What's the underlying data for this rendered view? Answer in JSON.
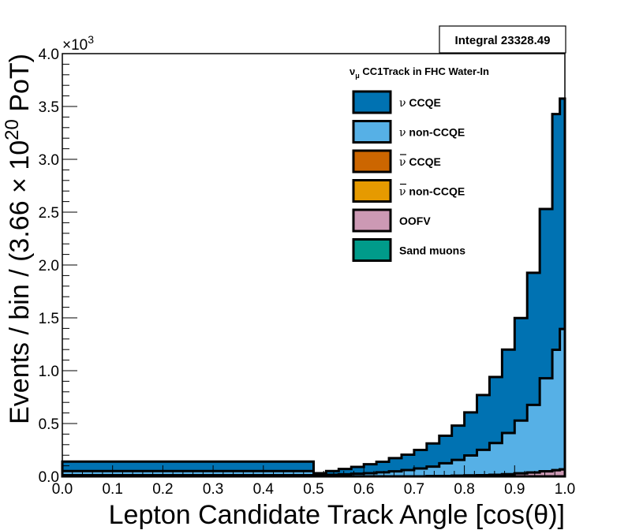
{
  "chart_data": {
    "type": "area",
    "stacked": true,
    "xlabel": "Lepton Candidate Track Angle [cos(θ)]",
    "ylabel_parts": {
      "main": "Events / bin / (3.66 × 10",
      "sup": "20",
      "tail": " PoT)"
    },
    "xlim": [
      0.0,
      1.0
    ],
    "ylim": [
      0.0,
      4.0
    ],
    "y_scale_label": {
      "base": "×10",
      "exp": "3"
    },
    "x_ticks": [
      "0.0",
      "0.1",
      "0.2",
      "0.3",
      "0.4",
      "0.5",
      "0.6",
      "0.7",
      "0.8",
      "0.9",
      "1.0"
    ],
    "y_ticks": [
      "0.0",
      "0.5",
      "1.0",
      "1.5",
      "2.0",
      "2.5",
      "3.0",
      "3.5",
      "4.0"
    ],
    "bin_edges": [
      0.0,
      0.5,
      0.525,
      0.55,
      0.575,
      0.6,
      0.625,
      0.65,
      0.675,
      0.7,
      0.725,
      0.75,
      0.775,
      0.8,
      0.825,
      0.85,
      0.875,
      0.9,
      0.925,
      0.95,
      0.975,
      0.99,
      1.0
    ],
    "series": [
      {
        "name": "Sand muons",
        "color": "#009b8a",
        "values": [
          0,
          0,
          0,
          0,
          0,
          0,
          0,
          0,
          0,
          0,
          0,
          0,
          0,
          0,
          0,
          0,
          0,
          0,
          0,
          0,
          0,
          0
        ]
      },
      {
        "name": "OOFV",
        "color": "#cc99b4",
        "values": [
          0.01,
          0.0,
          0.0,
          0.0,
          0.0,
          0.0,
          0.0,
          0.0,
          0.0,
          0.0,
          0.002,
          0.004,
          0.006,
          0.008,
          0.011,
          0.015,
          0.02,
          0.028,
          0.036,
          0.048,
          0.058,
          0.065
        ]
      },
      {
        "name": "ν̄ non-CCQE",
        "color": "#e69a00",
        "values": [
          0,
          0,
          0,
          0,
          0,
          0,
          0,
          0,
          0,
          0,
          0,
          0,
          0,
          0,
          0,
          0,
          0,
          0,
          0,
          0,
          0,
          0
        ]
      },
      {
        "name": "ν̄ CCQE",
        "color": "#cc6600",
        "values": [
          0,
          0,
          0,
          0,
          0,
          0,
          0,
          0,
          0,
          0,
          0,
          0,
          0,
          0,
          0,
          0,
          0,
          0,
          0,
          0,
          0,
          0
        ]
      },
      {
        "name": "ν non-CCQE",
        "color": "#56b0e6",
        "values": [
          0.04,
          0.01,
          0.015,
          0.02,
          0.025,
          0.03,
          0.038,
          0.048,
          0.06,
          0.075,
          0.09,
          0.12,
          0.15,
          0.19,
          0.24,
          0.3,
          0.39,
          0.5,
          0.64,
          0.88,
          1.14,
          1.33
        ]
      },
      {
        "name": "ν CCQE",
        "color": "#0072b2",
        "values": [
          0.09,
          0.02,
          0.035,
          0.05,
          0.065,
          0.085,
          0.1,
          0.125,
          0.145,
          0.175,
          0.22,
          0.26,
          0.324,
          0.407,
          0.519,
          0.625,
          0.79,
          0.97,
          1.25,
          1.602,
          2.23,
          2.18
        ]
      }
    ],
    "legend": {
      "title": "ν_μ CC1Track in FHC Water-In",
      "title_main": "ν",
      "title_sub": "μ",
      "title_rest": " CC1Track in FHC Water-In",
      "placement": "top-right",
      "entries": [
        {
          "symbol": "ν",
          "bar": false,
          "text": " CCQE",
          "color": "#0072b2"
        },
        {
          "symbol": "ν",
          "bar": false,
          "text": " non-CCQE",
          "color": "#56b0e6"
        },
        {
          "symbol": "ν",
          "bar": true,
          "text": " CCQE",
          "color": "#cc6600"
        },
        {
          "symbol": "ν",
          "bar": true,
          "text": " non-CCQE",
          "color": "#e69a00"
        },
        {
          "symbol": "",
          "bar": false,
          "text": "OOFV",
          "color": "#cc99b4"
        },
        {
          "symbol": "",
          "bar": false,
          "text": "Sand muons",
          "color": "#009b8a"
        }
      ]
    },
    "stats_box": {
      "label": "Integral",
      "value": "23328.49"
    }
  }
}
